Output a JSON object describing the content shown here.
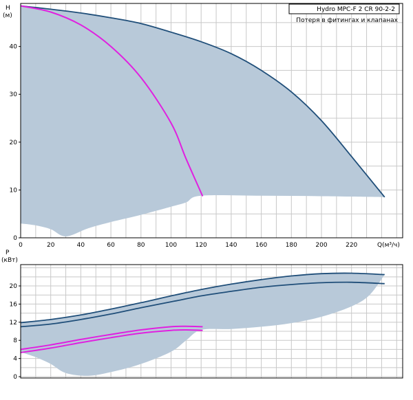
{
  "legend": {
    "title": "Hydro MPC-F 2 CR 90-2-2",
    "note": "Потеря в фитингах и клапанах"
  },
  "chart_data": [
    {
      "type": "line",
      "ylabel_line1": "H",
      "ylabel_line2": "(м)",
      "xlabel": "Q(м³/ч)",
      "xlim": [
        0,
        254
      ],
      "ylim": [
        0,
        49
      ],
      "xticks": [
        0,
        20,
        40,
        60,
        80,
        100,
        120,
        140,
        160,
        180,
        200,
        220
      ],
      "yticks": [
        0,
        10,
        20,
        30,
        40
      ],
      "grid": true,
      "colors": {
        "envelope": "#b8c9d9",
        "pumps2": "#1f4e79",
        "pump1": "#e020e0",
        "frame": "#000000",
        "grid": "#c8c8c8"
      },
      "envelope": {
        "upper": [
          [
            0,
            48.5
          ],
          [
            20,
            47.8
          ],
          [
            40,
            47.0
          ],
          [
            60,
            46.0
          ],
          [
            80,
            44.8
          ],
          [
            100,
            43.0
          ],
          [
            120,
            41.0
          ],
          [
            140,
            38.5
          ],
          [
            160,
            35.0
          ],
          [
            180,
            30.5
          ],
          [
            200,
            24.5
          ],
          [
            220,
            17.0
          ],
          [
            242,
            8.5
          ]
        ],
        "lower": [
          [
            242,
            8.5
          ],
          [
            200,
            8.7
          ],
          [
            160,
            8.8
          ],
          [
            120,
            8.8
          ],
          [
            110,
            7.4
          ],
          [
            100,
            6.5
          ],
          [
            80,
            4.8
          ],
          [
            60,
            3.3
          ],
          [
            45,
            2.0
          ],
          [
            30,
            0.3
          ],
          [
            20,
            1.8
          ],
          [
            10,
            2.6
          ],
          [
            0,
            3.0
          ]
        ]
      },
      "series": [
        {
          "color": "#1f4e79",
          "points": [
            [
              0,
              48.5
            ],
            [
              20,
              47.8
            ],
            [
              40,
              47.0
            ],
            [
              60,
              46.0
            ],
            [
              80,
              44.8
            ],
            [
              100,
              43.0
            ],
            [
              120,
              41.0
            ],
            [
              140,
              38.5
            ],
            [
              160,
              35.0
            ],
            [
              180,
              30.5
            ],
            [
              200,
              24.5
            ],
            [
              220,
              17.0
            ],
            [
              242,
              8.5
            ]
          ]
        },
        {
          "color": "#e020e0",
          "points": [
            [
              0,
              48.5
            ],
            [
              20,
              47.2
            ],
            [
              40,
              44.5
            ],
            [
              60,
              40.0
            ],
            [
              80,
              33.5
            ],
            [
              100,
              24.0
            ],
            [
              110,
              16.5
            ],
            [
              121,
              8.7
            ]
          ]
        }
      ]
    },
    {
      "type": "line",
      "ylabel_line1": "P",
      "ylabel_line2": "(кВт)",
      "xlim": [
        0,
        254
      ],
      "ylim": [
        -0.3,
        24.7
      ],
      "yticks": [
        0,
        4,
        8,
        12,
        16,
        20
      ],
      "grid": true,
      "envelope": {
        "upper": [
          [
            0,
            11.9
          ],
          [
            20,
            12.6
          ],
          [
            40,
            13.6
          ],
          [
            60,
            14.9
          ],
          [
            80,
            16.3
          ],
          [
            100,
            17.8
          ],
          [
            120,
            19.2
          ],
          [
            140,
            20.4
          ],
          [
            160,
            21.4
          ],
          [
            180,
            22.2
          ],
          [
            200,
            22.7
          ],
          [
            220,
            22.8
          ],
          [
            242,
            22.5
          ]
        ],
        "lower": [
          [
            242,
            22.5
          ],
          [
            232,
            18.0
          ],
          [
            220,
            15.5
          ],
          [
            200,
            13.2
          ],
          [
            180,
            11.8
          ],
          [
            160,
            11.0
          ],
          [
            140,
            10.5
          ],
          [
            120,
            10.3
          ],
          [
            110,
            8.0
          ],
          [
            100,
            5.5
          ],
          [
            80,
            2.8
          ],
          [
            60,
            1.0
          ],
          [
            45,
            0.2
          ],
          [
            30,
            0.8
          ],
          [
            20,
            2.8
          ],
          [
            10,
            4.3
          ],
          [
            0,
            5.4
          ]
        ]
      },
      "series": [
        {
          "color": "#1f4e79",
          "points": [
            [
              0,
              11.9
            ],
            [
              20,
              12.6
            ],
            [
              40,
              13.6
            ],
            [
              60,
              14.9
            ],
            [
              80,
              16.3
            ],
            [
              100,
              17.8
            ],
            [
              120,
              19.2
            ],
            [
              140,
              20.4
            ],
            [
              160,
              21.4
            ],
            [
              180,
              22.2
            ],
            [
              200,
              22.7
            ],
            [
              220,
              22.8
            ],
            [
              242,
              22.5
            ]
          ]
        },
        {
          "color": "#1f4e79",
          "points": [
            [
              0,
              11.0
            ],
            [
              20,
              11.6
            ],
            [
              40,
              12.6
            ],
            [
              60,
              13.8
            ],
            [
              80,
              15.2
            ],
            [
              100,
              16.5
            ],
            [
              120,
              17.8
            ],
            [
              140,
              18.8
            ],
            [
              160,
              19.7
            ],
            [
              180,
              20.3
            ],
            [
              200,
              20.7
            ],
            [
              220,
              20.8
            ],
            [
              242,
              20.5
            ]
          ]
        },
        {
          "color": "#e020e0",
          "points": [
            [
              0,
              6.0
            ],
            [
              20,
              7.0
            ],
            [
              40,
              8.2
            ],
            [
              60,
              9.3
            ],
            [
              80,
              10.3
            ],
            [
              100,
              11.0
            ],
            [
              110,
              11.1
            ],
            [
              121,
              11.0
            ]
          ]
        },
        {
          "color": "#e020e0",
          "points": [
            [
              0,
              5.3
            ],
            [
              20,
              6.3
            ],
            [
              40,
              7.5
            ],
            [
              60,
              8.6
            ],
            [
              80,
              9.6
            ],
            [
              100,
              10.2
            ],
            [
              110,
              10.3
            ],
            [
              121,
              10.2
            ]
          ]
        }
      ]
    }
  ]
}
